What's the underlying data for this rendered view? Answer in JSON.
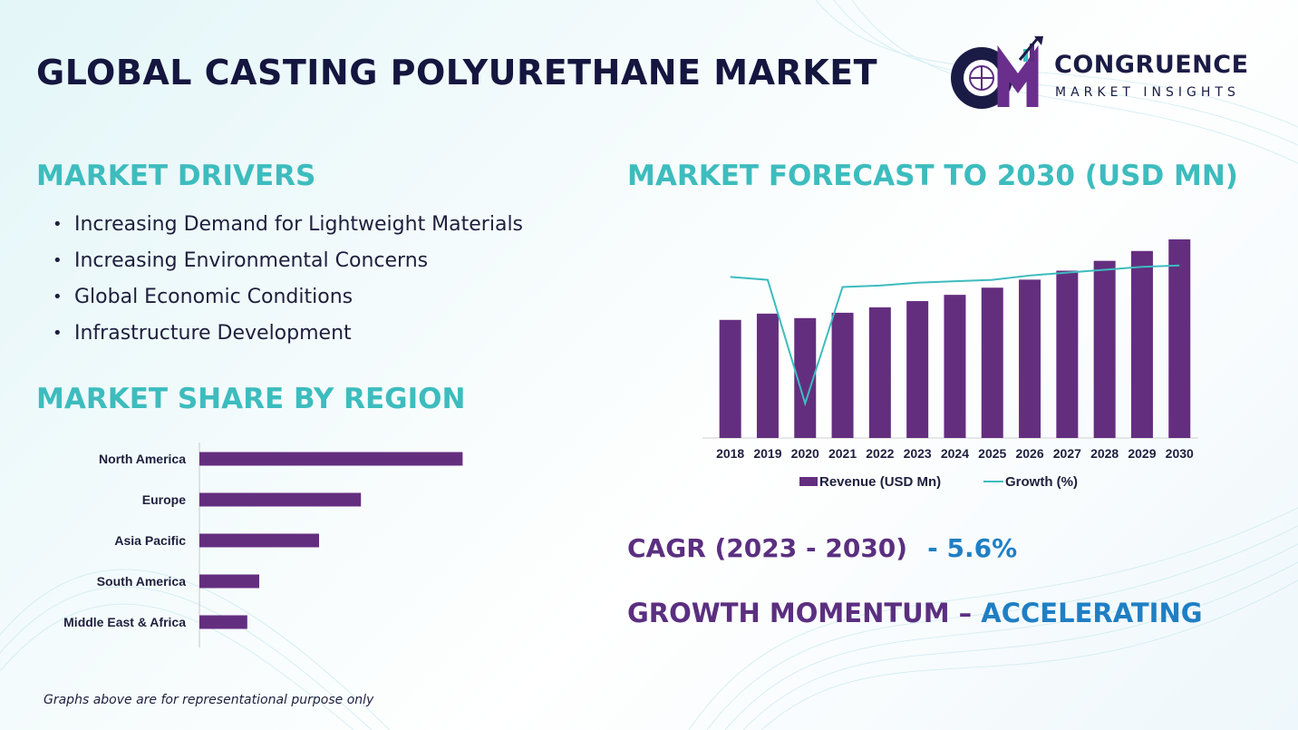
{
  "header": {
    "title": "GLOBAL CASTING POLYURETHANE MARKET",
    "logo_name": "CONGRUENCE",
    "logo_subtitle": "MARKET INSIGHTS"
  },
  "drivers": {
    "heading": "MARKET DRIVERS",
    "items": [
      "Increasing Demand for Lightweight Materials",
      "Increasing Environmental Concerns",
      "Global Economic Conditions",
      "Infrastructure Development"
    ]
  },
  "region_heading": "MARKET SHARE BY REGION",
  "forecast_heading": "MARKET FORECAST TO 2030 (USD MN)",
  "cagr": {
    "label": "CAGR (2023 - 2030)",
    "value": "- 5.6%"
  },
  "momentum": {
    "label": "GROWTH MOMENTUM – ",
    "value": "ACCELERATING"
  },
  "footnote": "Graphs above are for representational purpose only",
  "colors": {
    "bar": "#642e7f",
    "line": "#3dbcbe",
    "heading": "#3dbcbe",
    "accent_blue": "#1f7fc4",
    "dark": "#14163f"
  },
  "chart_data": [
    {
      "type": "bar",
      "orientation": "horizontal",
      "categories": [
        "North America",
        "Europe",
        "Asia Pacific",
        "South America",
        "Middle East & Africa"
      ],
      "values": [
        44,
        27,
        20,
        10,
        8
      ],
      "xlim": [
        0,
        50
      ],
      "grid": false
    },
    {
      "type": "bar",
      "categories": [
        "2018",
        "2019",
        "2020",
        "2021",
        "2022",
        "2023",
        "2024",
        "2025",
        "2026",
        "2027",
        "2028",
        "2029",
        "2030"
      ],
      "series": [
        {
          "name": "Revenue (USD Mn)",
          "type": "bar",
          "values": [
            132,
            139,
            134,
            140,
            146,
            153,
            160,
            168,
            177,
            187,
            198,
            209,
            222
          ]
        },
        {
          "name": "Growth (%)",
          "type": "line",
          "values": [
            5.2,
            5.0,
            -3.6,
            4.5,
            4.6,
            4.8,
            4.9,
            5.0,
            5.3,
            5.5,
            5.7,
            5.9,
            6.0
          ]
        }
      ],
      "ylim": [
        0,
        225
      ],
      "y2lim": [
        -6,
        8
      ],
      "legend": "bottom",
      "grid": false
    }
  ]
}
